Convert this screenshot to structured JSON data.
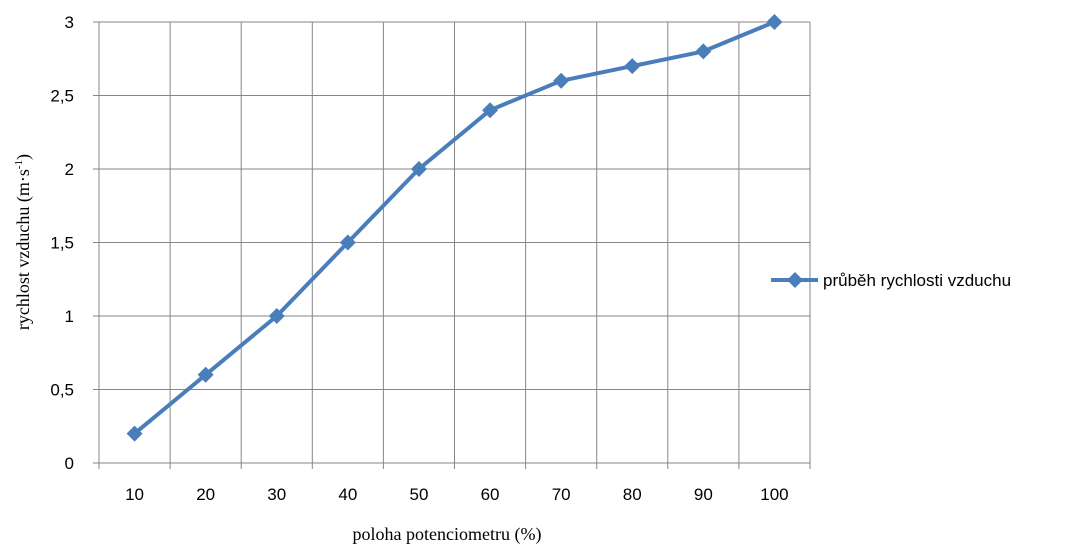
{
  "chart_data": {
    "type": "line",
    "categories": [
      "10",
      "20",
      "30",
      "40",
      "50",
      "60",
      "70",
      "80",
      "90",
      "100"
    ],
    "series": [
      {
        "name": "průběh rychlosti vzduchu",
        "values": [
          0.2,
          0.6,
          1.0,
          1.5,
          2.0,
          2.4,
          2.6,
          2.7,
          2.8,
          3.0
        ],
        "color": "#4a7ebb",
        "marker": "diamond"
      }
    ],
    "xlabel": "poloha potenciometru (%)",
    "ylabel_main": "rychlost vzduchu (m·s",
    "ylabel_sup": "-1",
    "ylabel_close": ")",
    "ylim": [
      0,
      3
    ],
    "yticks": [
      "0",
      "0,5",
      "1",
      "1,5",
      "2",
      "2,5",
      "3"
    ],
    "grid": true,
    "legend_position": "right"
  }
}
